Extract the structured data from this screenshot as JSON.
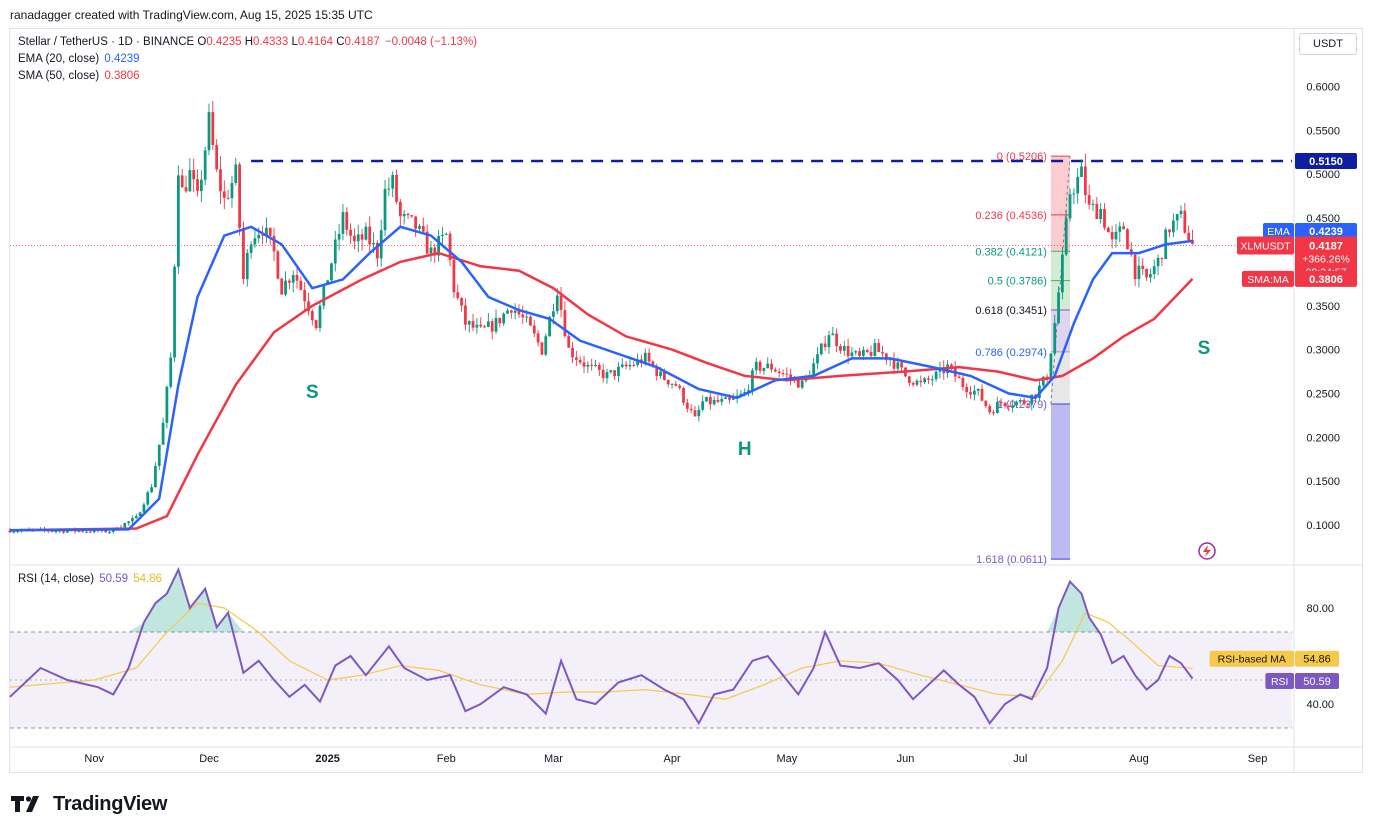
{
  "header": {
    "attribution": "ranadagger created with TradingView.com, Aug 15, 2025 15:35 UTC"
  },
  "legend": {
    "title": "Stellar / TetherUS · 1D · BINANCE",
    "ohlc": [
      {
        "k": "O",
        "v": "0.4235"
      },
      {
        "k": "H",
        "v": "0.4333"
      },
      {
        "k": "L",
        "v": "0.4164"
      },
      {
        "k": "C",
        "v": "0.4187"
      }
    ],
    "change": "−0.0048 (−1.13%)",
    "ema_label": "EMA (20, close)",
    "ema_value": "0.4239",
    "sma_label": "SMA (50, close)",
    "sma_value": "0.3806",
    "rsi_label": "RSI (14, close)",
    "rsi_value": "50.59",
    "rsi_ma_value": "54.86"
  },
  "unit_button": "USDT",
  "brand": "TradingView",
  "colors": {
    "up": "#089981",
    "down": "#f23645",
    "ema": "#2962ff",
    "sma": "#f23645",
    "rsi": "#7e57c2",
    "rsi_ma": "#f7c948",
    "resistance": "#0d1ea0",
    "pattern_label": "#089981"
  },
  "chart_data": {
    "type": "candlestick",
    "symbol": "XLMUSDT",
    "y_scale": "linear",
    "ylim": [
      0.055,
      0.64
    ],
    "y_ticks": [
      "0.6000",
      "0.5500",
      "0.5000",
      "0.4500",
      "0.4000",
      "0.3500",
      "0.3000",
      "0.2500",
      "0.2000",
      "0.1500",
      "0.1000"
    ],
    "y_tick_values": [
      0.6,
      0.55,
      0.5,
      0.45,
      0.4,
      0.35,
      0.3,
      0.25,
      0.2,
      0.15,
      0.1
    ],
    "x_ticks": [
      {
        "label": "Nov",
        "date": "2024-11-01"
      },
      {
        "label": "Dec",
        "date": "2024-12-01"
      },
      {
        "label": "2025",
        "date": "2025-01-01",
        "bold": true
      },
      {
        "label": "Feb",
        "date": "2025-02-01"
      },
      {
        "label": "Mar",
        "date": "2025-03-01"
      },
      {
        "label": "Apr",
        "date": "2025-04-01"
      },
      {
        "label": "May",
        "date": "2025-05-01"
      },
      {
        "label": "Jun",
        "date": "2025-06-01"
      },
      {
        "label": "Jul",
        "date": "2025-07-01"
      },
      {
        "label": "Aug",
        "date": "2025-08-01"
      },
      {
        "label": "Sep",
        "date": "2025-09-01"
      }
    ],
    "x_range": [
      "2024-10-10",
      "2025-09-10"
    ],
    "close_path": [
      [
        "2024-10-10",
        0.094
      ],
      [
        "2024-11-05",
        0.093
      ],
      [
        "2024-11-12",
        0.108
      ],
      [
        "2024-11-16",
        0.145
      ],
      [
        "2024-11-19",
        0.215
      ],
      [
        "2024-11-21",
        0.29
      ],
      [
        "2024-11-23",
        0.51
      ],
      [
        "2024-11-24",
        0.48
      ],
      [
        "2024-11-26",
        0.5
      ],
      [
        "2024-11-28",
        0.47
      ],
      [
        "2024-12-01",
        0.56
      ],
      [
        "2024-12-03",
        0.5
      ],
      [
        "2024-12-05",
        0.47
      ],
      [
        "2024-12-08",
        0.5
      ],
      [
        "2024-12-10",
        0.38
      ],
      [
        "2024-12-12",
        0.43
      ],
      [
        "2024-12-15",
        0.44
      ],
      [
        "2024-12-18",
        0.41
      ],
      [
        "2024-12-20",
        0.37
      ],
      [
        "2024-12-23",
        0.39
      ],
      [
        "2024-12-26",
        0.36
      ],
      [
        "2024-12-29",
        0.33
      ],
      [
        "2025-01-02",
        0.4
      ],
      [
        "2025-01-05",
        0.45
      ],
      [
        "2025-01-08",
        0.42
      ],
      [
        "2025-01-11",
        0.43
      ],
      [
        "2025-01-14",
        0.41
      ],
      [
        "2025-01-16",
        0.48
      ],
      [
        "2025-01-18",
        0.49
      ],
      [
        "2025-01-20",
        0.45
      ],
      [
        "2025-01-24",
        0.44
      ],
      [
        "2025-01-28",
        0.41
      ],
      [
        "2025-02-01",
        0.43
      ],
      [
        "2025-02-03",
        0.37
      ],
      [
        "2025-02-06",
        0.33
      ],
      [
        "2025-02-10",
        0.32
      ],
      [
        "2025-02-14",
        0.33
      ],
      [
        "2025-02-18",
        0.35
      ],
      [
        "2025-02-22",
        0.33
      ],
      [
        "2025-02-26",
        0.3
      ],
      [
        "2025-03-02",
        0.37
      ],
      [
        "2025-03-05",
        0.3
      ],
      [
        "2025-03-10",
        0.28
      ],
      [
        "2025-03-15",
        0.27
      ],
      [
        "2025-03-20",
        0.28
      ],
      [
        "2025-03-25",
        0.29
      ],
      [
        "2025-03-29",
        0.27
      ],
      [
        "2025-04-02",
        0.26
      ],
      [
        "2025-04-07",
        0.22
      ],
      [
        "2025-04-09",
        0.24
      ],
      [
        "2025-04-12",
        0.24
      ],
      [
        "2025-04-16",
        0.24
      ],
      [
        "2025-04-20",
        0.25
      ],
      [
        "2025-04-23",
        0.28
      ],
      [
        "2025-04-27",
        0.28
      ],
      [
        "2025-05-01",
        0.27
      ],
      [
        "2025-05-05",
        0.26
      ],
      [
        "2025-05-09",
        0.29
      ],
      [
        "2025-05-12",
        0.32
      ],
      [
        "2025-05-16",
        0.3
      ],
      [
        "2025-05-20",
        0.29
      ],
      [
        "2025-05-24",
        0.3
      ],
      [
        "2025-05-28",
        0.29
      ],
      [
        "2025-06-01",
        0.27
      ],
      [
        "2025-06-05",
        0.26
      ],
      [
        "2025-06-09",
        0.27
      ],
      [
        "2025-06-12",
        0.28
      ],
      [
        "2025-06-16",
        0.26
      ],
      [
        "2025-06-20",
        0.25
      ],
      [
        "2025-06-23",
        0.23
      ],
      [
        "2025-06-26",
        0.24
      ],
      [
        "2025-06-29",
        0.24
      ],
      [
        "2025-07-02",
        0.24
      ],
      [
        "2025-07-05",
        0.25
      ],
      [
        "2025-07-08",
        0.27
      ],
      [
        "2025-07-10",
        0.33
      ],
      [
        "2025-07-12",
        0.4
      ],
      [
        "2025-07-14",
        0.48
      ],
      [
        "2025-07-17",
        0.5
      ],
      [
        "2025-07-19",
        0.46
      ],
      [
        "2025-07-22",
        0.46
      ],
      [
        "2025-07-25",
        0.42
      ],
      [
        "2025-07-28",
        0.44
      ],
      [
        "2025-07-31",
        0.39
      ],
      [
        "2025-08-03",
        0.38
      ],
      [
        "2025-08-06",
        0.4
      ],
      [
        "2025-08-09",
        0.44
      ],
      [
        "2025-08-12",
        0.45
      ],
      [
        "2025-08-15",
        0.419
      ]
    ],
    "ema20": {
      "name": "EMA",
      "value": "0.4239",
      "points": [
        [
          "2024-10-10",
          0.094
        ],
        [
          "2024-11-10",
          0.095
        ],
        [
          "2024-11-18",
          0.13
        ],
        [
          "2024-11-23",
          0.26
        ],
        [
          "2024-11-28",
          0.36
        ],
        [
          "2024-12-05",
          0.43
        ],
        [
          "2024-12-12",
          0.44
        ],
        [
          "2024-12-20",
          0.42
        ],
        [
          "2024-12-28",
          0.37
        ],
        [
          "2025-01-05",
          0.38
        ],
        [
          "2025-01-12",
          0.41
        ],
        [
          "2025-01-20",
          0.44
        ],
        [
          "2025-01-28",
          0.43
        ],
        [
          "2025-02-05",
          0.4
        ],
        [
          "2025-02-12",
          0.36
        ],
        [
          "2025-02-20",
          0.345
        ],
        [
          "2025-02-28",
          0.335
        ],
        [
          "2025-03-08",
          0.31
        ],
        [
          "2025-03-18",
          0.295
        ],
        [
          "2025-03-28",
          0.28
        ],
        [
          "2025-04-08",
          0.255
        ],
        [
          "2025-04-18",
          0.245
        ],
        [
          "2025-04-28",
          0.265
        ],
        [
          "2025-05-08",
          0.27
        ],
        [
          "2025-05-18",
          0.29
        ],
        [
          "2025-05-28",
          0.29
        ],
        [
          "2025-06-08",
          0.28
        ],
        [
          "2025-06-18",
          0.27
        ],
        [
          "2025-06-28",
          0.25
        ],
        [
          "2025-07-05",
          0.245
        ],
        [
          "2025-07-10",
          0.27
        ],
        [
          "2025-07-15",
          0.33
        ],
        [
          "2025-07-20",
          0.38
        ],
        [
          "2025-07-25",
          0.41
        ],
        [
          "2025-08-01",
          0.41
        ],
        [
          "2025-08-08",
          0.42
        ],
        [
          "2025-08-15",
          0.4239
        ]
      ]
    },
    "sma50": {
      "name": "SMA",
      "value": "0.3806",
      "points": [
        [
          "2024-10-10",
          0.094
        ],
        [
          "2024-11-12",
          0.096
        ],
        [
          "2024-11-20",
          0.11
        ],
        [
          "2024-11-28",
          0.18
        ],
        [
          "2024-12-08",
          0.26
        ],
        [
          "2024-12-18",
          0.32
        ],
        [
          "2024-12-28",
          0.35
        ],
        [
          "2025-01-10",
          0.38
        ],
        [
          "2025-01-20",
          0.4
        ],
        [
          "2025-01-30",
          0.41
        ],
        [
          "2025-02-10",
          0.395
        ],
        [
          "2025-02-20",
          0.39
        ],
        [
          "2025-03-01",
          0.37
        ],
        [
          "2025-03-10",
          0.34
        ],
        [
          "2025-03-20",
          0.315
        ],
        [
          "2025-04-01",
          0.3
        ],
        [
          "2025-04-10",
          0.285
        ],
        [
          "2025-04-20",
          0.27
        ],
        [
          "2025-05-01",
          0.265
        ],
        [
          "2025-05-15",
          0.27
        ],
        [
          "2025-06-01",
          0.275
        ],
        [
          "2025-06-15",
          0.28
        ],
        [
          "2025-06-25",
          0.275
        ],
        [
          "2025-07-05",
          0.265
        ],
        [
          "2025-07-12",
          0.27
        ],
        [
          "2025-07-20",
          0.29
        ],
        [
          "2025-07-28",
          0.315
        ],
        [
          "2025-08-05",
          0.335
        ],
        [
          "2025-08-15",
          0.3806
        ]
      ]
    },
    "resistance": {
      "value": 0.515,
      "label": "0.5150",
      "from": "2024-12-12",
      "to": "2025-09-10"
    },
    "fibonacci": {
      "from": "2025-07-09",
      "to": "2025-07-14",
      "levels": [
        {
          "ratio": "0",
          "price": 0.5206,
          "label": "0 (0.5206)"
        },
        {
          "ratio": "0.236",
          "price": 0.4536,
          "label": "0.236 (0.4536)"
        },
        {
          "ratio": "0.382",
          "price": 0.4121,
          "label": "0.382 (0.4121)"
        },
        {
          "ratio": "0.5",
          "price": 0.3786,
          "label": "0.5 (0.3786)"
        },
        {
          "ratio": "0.618",
          "price": 0.3451,
          "label": "0.618 (0.3451)"
        },
        {
          "ratio": "0.786",
          "price": 0.2974,
          "label": "0.786 (0.2974)"
        },
        {
          "ratio": "1",
          "price": 0.2379,
          "label": "1 (0.2379)"
        },
        {
          "ratio": "1.618",
          "price": 0.0611,
          "label": "1.618 (0.0611)"
        }
      ]
    },
    "annotations": [
      {
        "text": "S",
        "date": "2024-12-28",
        "price": 0.245
      },
      {
        "text": "H",
        "date": "2025-04-20",
        "price": 0.18
      },
      {
        "text": "S",
        "date": "2025-08-18",
        "price": 0.295
      }
    ],
    "price_tags": [
      {
        "label": "EMA",
        "value": "0.4239",
        "price": 0.4239,
        "color": "#2962ff"
      },
      {
        "label": "XLMUSDT",
        "value": "0.4187",
        "extra": [
          "+366.26%",
          "08:24:57"
        ],
        "price": 0.4187,
        "color": "#f23645"
      },
      {
        "label": "SMA:MA",
        "value": "0.3806",
        "price": 0.3806,
        "color": "#f23645"
      }
    ],
    "rsi": {
      "name": "RSI",
      "ylim": [
        25,
        100
      ],
      "y_ticks": [
        "80.00",
        "40.00"
      ],
      "y_tick_values": [
        80,
        40
      ],
      "bands": [
        70,
        30
      ],
      "mid": 50,
      "value": "50.59",
      "ma_name": "RSI-based MA",
      "ma_value": "54.86",
      "points": [
        [
          "2024-10-10",
          43
        ],
        [
          "2024-10-18",
          55
        ],
        [
          "2024-10-25",
          50
        ],
        [
          "2024-11-02",
          47
        ],
        [
          "2024-11-06",
          44
        ],
        [
          "2024-11-10",
          55
        ],
        [
          "2024-11-14",
          74
        ],
        [
          "2024-11-17",
          82
        ],
        [
          "2024-11-20",
          86
        ],
        [
          "2024-11-23",
          96
        ],
        [
          "2024-11-26",
          80
        ],
        [
          "2024-11-30",
          88
        ],
        [
          "2024-12-03",
          72
        ],
        [
          "2024-12-06",
          78
        ],
        [
          "2024-12-10",
          53
        ],
        [
          "2024-12-14",
          58
        ],
        [
          "2024-12-18",
          50
        ],
        [
          "2024-12-22",
          43
        ],
        [
          "2024-12-26",
          48
        ],
        [
          "2024-12-30",
          41
        ],
        [
          "2025-01-03",
          56
        ],
        [
          "2025-01-07",
          60
        ],
        [
          "2025-01-11",
          52
        ],
        [
          "2025-01-17",
          64
        ],
        [
          "2025-01-21",
          55
        ],
        [
          "2025-01-27",
          50
        ],
        [
          "2025-02-02",
          52
        ],
        [
          "2025-02-06",
          37
        ],
        [
          "2025-02-10",
          40
        ],
        [
          "2025-02-16",
          47
        ],
        [
          "2025-02-22",
          44
        ],
        [
          "2025-02-27",
          36
        ],
        [
          "2025-03-03",
          58
        ],
        [
          "2025-03-07",
          42
        ],
        [
          "2025-03-12",
          40
        ],
        [
          "2025-03-18",
          49
        ],
        [
          "2025-03-24",
          52
        ],
        [
          "2025-03-30",
          46
        ],
        [
          "2025-04-04",
          42
        ],
        [
          "2025-04-08",
          32
        ],
        [
          "2025-04-12",
          44
        ],
        [
          "2025-04-17",
          46
        ],
        [
          "2025-04-22",
          58
        ],
        [
          "2025-04-26",
          60
        ],
        [
          "2025-04-30",
          52
        ],
        [
          "2025-05-04",
          44
        ],
        [
          "2025-05-08",
          55
        ],
        [
          "2025-05-11",
          70
        ],
        [
          "2025-05-15",
          56
        ],
        [
          "2025-05-20",
          55
        ],
        [
          "2025-05-25",
          57
        ],
        [
          "2025-05-30",
          50
        ],
        [
          "2025-06-03",
          42
        ],
        [
          "2025-06-07",
          48
        ],
        [
          "2025-06-11",
          54
        ],
        [
          "2025-06-15",
          48
        ],
        [
          "2025-06-19",
          43
        ],
        [
          "2025-06-23",
          32
        ],
        [
          "2025-06-27",
          40
        ],
        [
          "2025-07-01",
          44
        ],
        [
          "2025-07-04",
          42
        ],
        [
          "2025-07-08",
          55
        ],
        [
          "2025-07-11",
          80
        ],
        [
          "2025-07-14",
          91
        ],
        [
          "2025-07-17",
          86
        ],
        [
          "2025-07-19",
          76
        ],
        [
          "2025-07-22",
          69
        ],
        [
          "2025-07-25",
          57
        ],
        [
          "2025-07-28",
          60
        ],
        [
          "2025-07-31",
          52
        ],
        [
          "2025-08-03",
          46
        ],
        [
          "2025-08-06",
          50
        ],
        [
          "2025-08-09",
          60
        ],
        [
          "2025-08-12",
          57
        ],
        [
          "2025-08-15",
          50.59
        ]
      ],
      "ma_points": [
        [
          "2024-10-10",
          47
        ],
        [
          "2024-11-01",
          50
        ],
        [
          "2024-11-12",
          55
        ],
        [
          "2024-11-20",
          70
        ],
        [
          "2024-11-28",
          82
        ],
        [
          "2024-12-05",
          80
        ],
        [
          "2024-12-14",
          70
        ],
        [
          "2024-12-22",
          58
        ],
        [
          "2025-01-01",
          50
        ],
        [
          "2025-01-10",
          52
        ],
        [
          "2025-01-20",
          56
        ],
        [
          "2025-01-30",
          54
        ],
        [
          "2025-02-10",
          48
        ],
        [
          "2025-02-22",
          44
        ],
        [
          "2025-03-05",
          45
        ],
        [
          "2025-03-15",
          45
        ],
        [
          "2025-03-25",
          46
        ],
        [
          "2025-04-05",
          44
        ],
        [
          "2025-04-15",
          42
        ],
        [
          "2025-04-25",
          48
        ],
        [
          "2025-05-05",
          55
        ],
        [
          "2025-05-15",
          58
        ],
        [
          "2025-05-25",
          57
        ],
        [
          "2025-06-05",
          52
        ],
        [
          "2025-06-15",
          48
        ],
        [
          "2025-06-25",
          44
        ],
        [
          "2025-07-05",
          43
        ],
        [
          "2025-07-12",
          58
        ],
        [
          "2025-07-18",
          78
        ],
        [
          "2025-07-24",
          74
        ],
        [
          "2025-07-30",
          66
        ],
        [
          "2025-08-06",
          56
        ],
        [
          "2025-08-15",
          54.86
        ]
      ]
    }
  }
}
